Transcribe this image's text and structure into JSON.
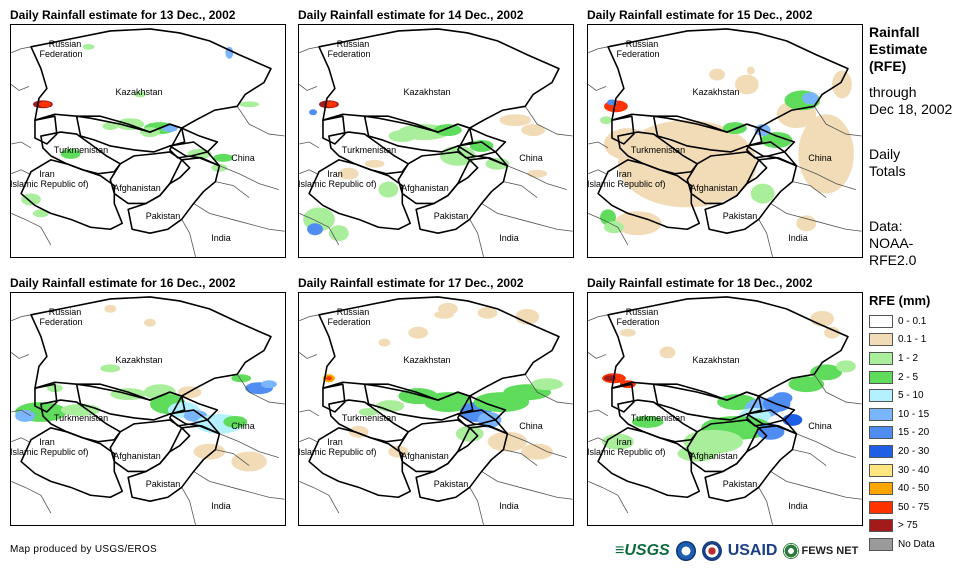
{
  "panels": [
    {
      "title": "Daily Rainfall estimate for 13 Dec., 2002"
    },
    {
      "title": "Daily Rainfall estimate for 14 Dec., 2002"
    },
    {
      "title": "Daily Rainfall estimate for 15 Dec., 2002"
    },
    {
      "title": "Daily Rainfall estimate for 16 Dec., 2002"
    },
    {
      "title": "Daily Rainfall estimate for 17 Dec., 2002"
    },
    {
      "title": "Daily Rainfall estimate for 18 Dec., 2002"
    }
  ],
  "map_labels": {
    "russia_1": "Russian",
    "russia_2": "Federation",
    "kazakhstan": "Kazakhstan",
    "turkmenistan": "Turkmenistan",
    "china": "China",
    "iran_1": "Iran",
    "iran_2": "(Islamic Republic of)",
    "afghanistan": "Afghanistan",
    "pakistan": "Pakistan",
    "india": "India"
  },
  "side": {
    "title_1": "Rainfall",
    "title_2": "Estimate",
    "title_3": "(RFE)",
    "through_1": "through",
    "through_2": "Dec 18, 2002",
    "totals_1": "Daily",
    "totals_2": "Totals",
    "data_1": "Data:",
    "data_2": "NOAA-",
    "data_3": "RFE2.0"
  },
  "legend": {
    "title": "RFE (mm)",
    "items": [
      {
        "label": "0 - 0.1",
        "color": "#ffffff"
      },
      {
        "label": "0.1 - 1",
        "color": "#f2dcb7"
      },
      {
        "label": "1 - 2",
        "color": "#a9ef9b"
      },
      {
        "label": "2 - 5",
        "color": "#5fdc5b"
      },
      {
        "label": "5 - 10",
        "color": "#b4f1ff"
      },
      {
        "label": "10 - 15",
        "color": "#7ab6ff"
      },
      {
        "label": "15 - 20",
        "color": "#4f8df2"
      },
      {
        "label": "20 - 30",
        "color": "#1f5fe6"
      },
      {
        "label": "30 - 40",
        "color": "#ffe680"
      },
      {
        "label": "40 - 50",
        "color": "#ffa500"
      },
      {
        "label": "50 - 75",
        "color": "#ff3300"
      },
      {
        "label": "> 75",
        "color": "#a31a1a"
      },
      {
        "label": "No Data",
        "color": "#9a9a9a"
      }
    ]
  },
  "footer": {
    "credit": "Map produced by USGS/EROS",
    "logo_usgs": "≡USGS",
    "logo_usaid": "USAID",
    "logo_fews": "FEWS NET"
  }
}
